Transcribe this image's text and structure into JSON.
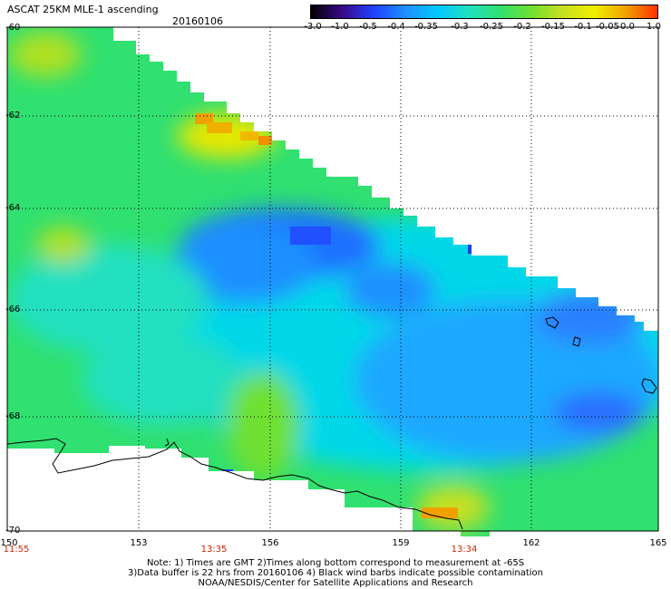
{
  "header": {
    "title": "ASCAT 25KM MLE-1 ascending",
    "date": "20160106"
  },
  "colorbar": {
    "labels": [
      "-3.0",
      "-1.0",
      "-0.5",
      "-0.4",
      "-0.35",
      "-0.3",
      "-0.25",
      "-0.2",
      "-0.15",
      "-0.1",
      "-0.05",
      "0.0",
      "1.0"
    ],
    "colors": [
      "#000000",
      "#3a0a8a",
      "#2040ff",
      "#1e90ff",
      "#00c8ff",
      "#20e0c0",
      "#30e070",
      "#70e030",
      "#c8e020",
      "#f0f000",
      "#f0a000",
      "#ff3000"
    ]
  },
  "map": {
    "lat_labels": [
      "-60",
      "-62",
      "-64",
      "-66",
      "-68",
      "-70"
    ],
    "lon_labels": [
      "150",
      "153",
      "156",
      "159",
      "162",
      "165"
    ],
    "time_labels": [
      "11:55",
      "13:35",
      "13:34"
    ]
  },
  "notes": {
    "line1": "Note: 1) Times are GMT 2)Times along bottom correspond to measurement at -65S",
    "line2": "3)Data buffer is 22 hrs from 20160106 4) Black wind barbs indicate possible contamination",
    "line3": "NOAA/NESDIS/Center for Satellite Applications and Research"
  }
}
